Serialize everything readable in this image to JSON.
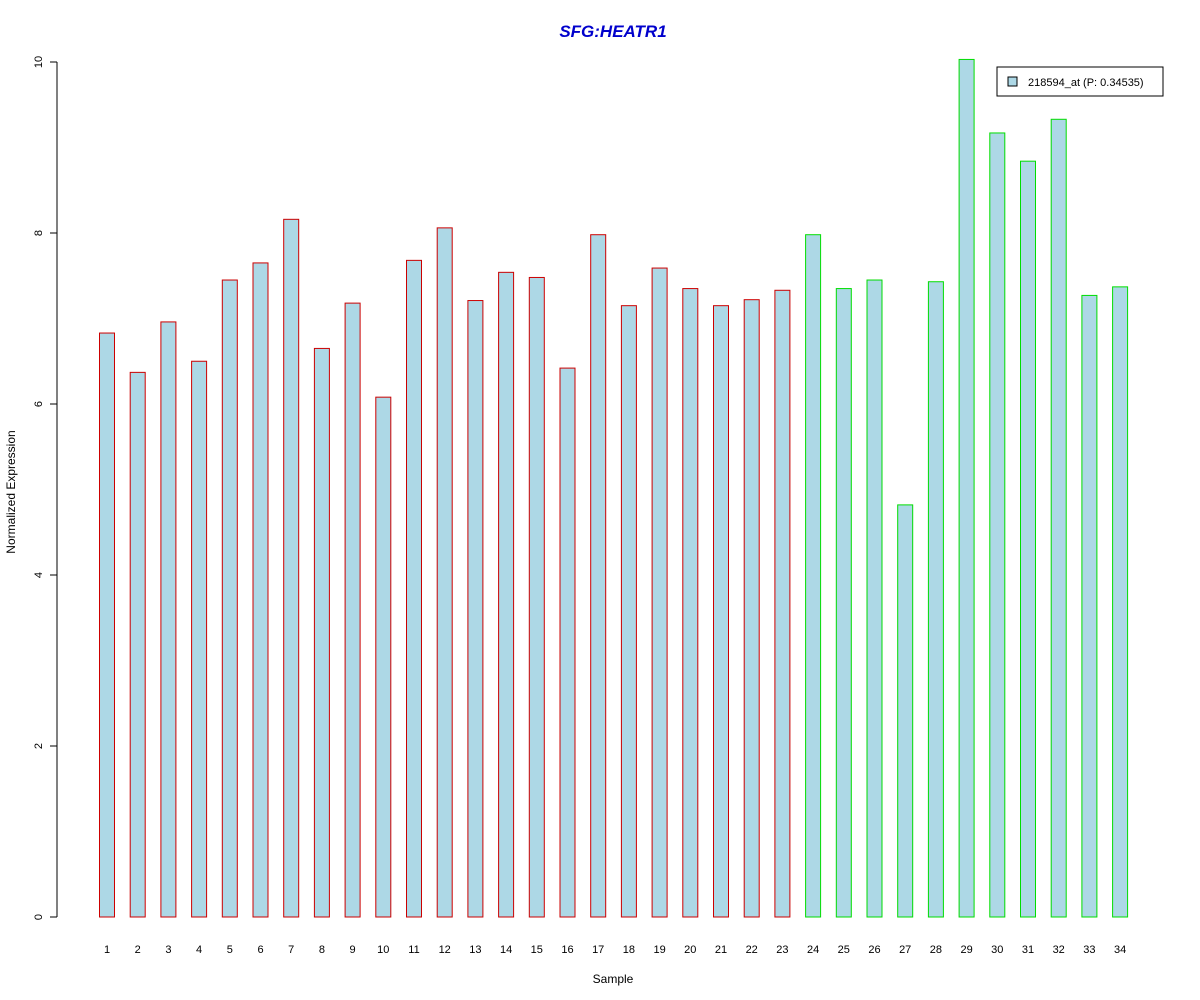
{
  "colors": {
    "title": "#0000CC",
    "bar_fill": "#ADD8E6",
    "group1_border": "#CC0000",
    "group2_border": "#00DD00",
    "axis": "#000000"
  },
  "chart_data": {
    "type": "bar",
    "title": "SFG:HEATR1",
    "xlabel": "Sample",
    "ylabel": "Normalized Expression",
    "ylim": [
      0,
      10
    ],
    "yticks": [
      0,
      2,
      4,
      6,
      8,
      10
    ],
    "categories": [
      "1",
      "2",
      "3",
      "4",
      "5",
      "6",
      "7",
      "8",
      "9",
      "10",
      "11",
      "12",
      "13",
      "14",
      "15",
      "16",
      "17",
      "18",
      "19",
      "20",
      "21",
      "22",
      "23",
      "24",
      "25",
      "26",
      "27",
      "28",
      "29",
      "30",
      "31",
      "32",
      "33",
      "34"
    ],
    "series": [
      {
        "name": "218594_at (P: 0.34535)",
        "values": [
          6.83,
          6.37,
          6.96,
          6.5,
          7.45,
          7.65,
          8.16,
          6.65,
          7.18,
          6.08,
          7.68,
          8.06,
          7.21,
          7.54,
          7.48,
          6.42,
          7.98,
          7.15,
          7.59,
          7.35,
          7.15,
          7.22,
          7.33,
          7.98,
          7.35,
          7.45,
          4.82,
          7.43,
          10.03,
          9.17,
          8.84,
          9.33,
          7.27,
          7.37
        ]
      }
    ],
    "groups": [
      {
        "from": 1,
        "to": 23,
        "border_color": "#CC0000"
      },
      {
        "from": 24,
        "to": 34,
        "border_color": "#00DD00"
      }
    ],
    "grid": false,
    "legend_position": "top-right"
  }
}
